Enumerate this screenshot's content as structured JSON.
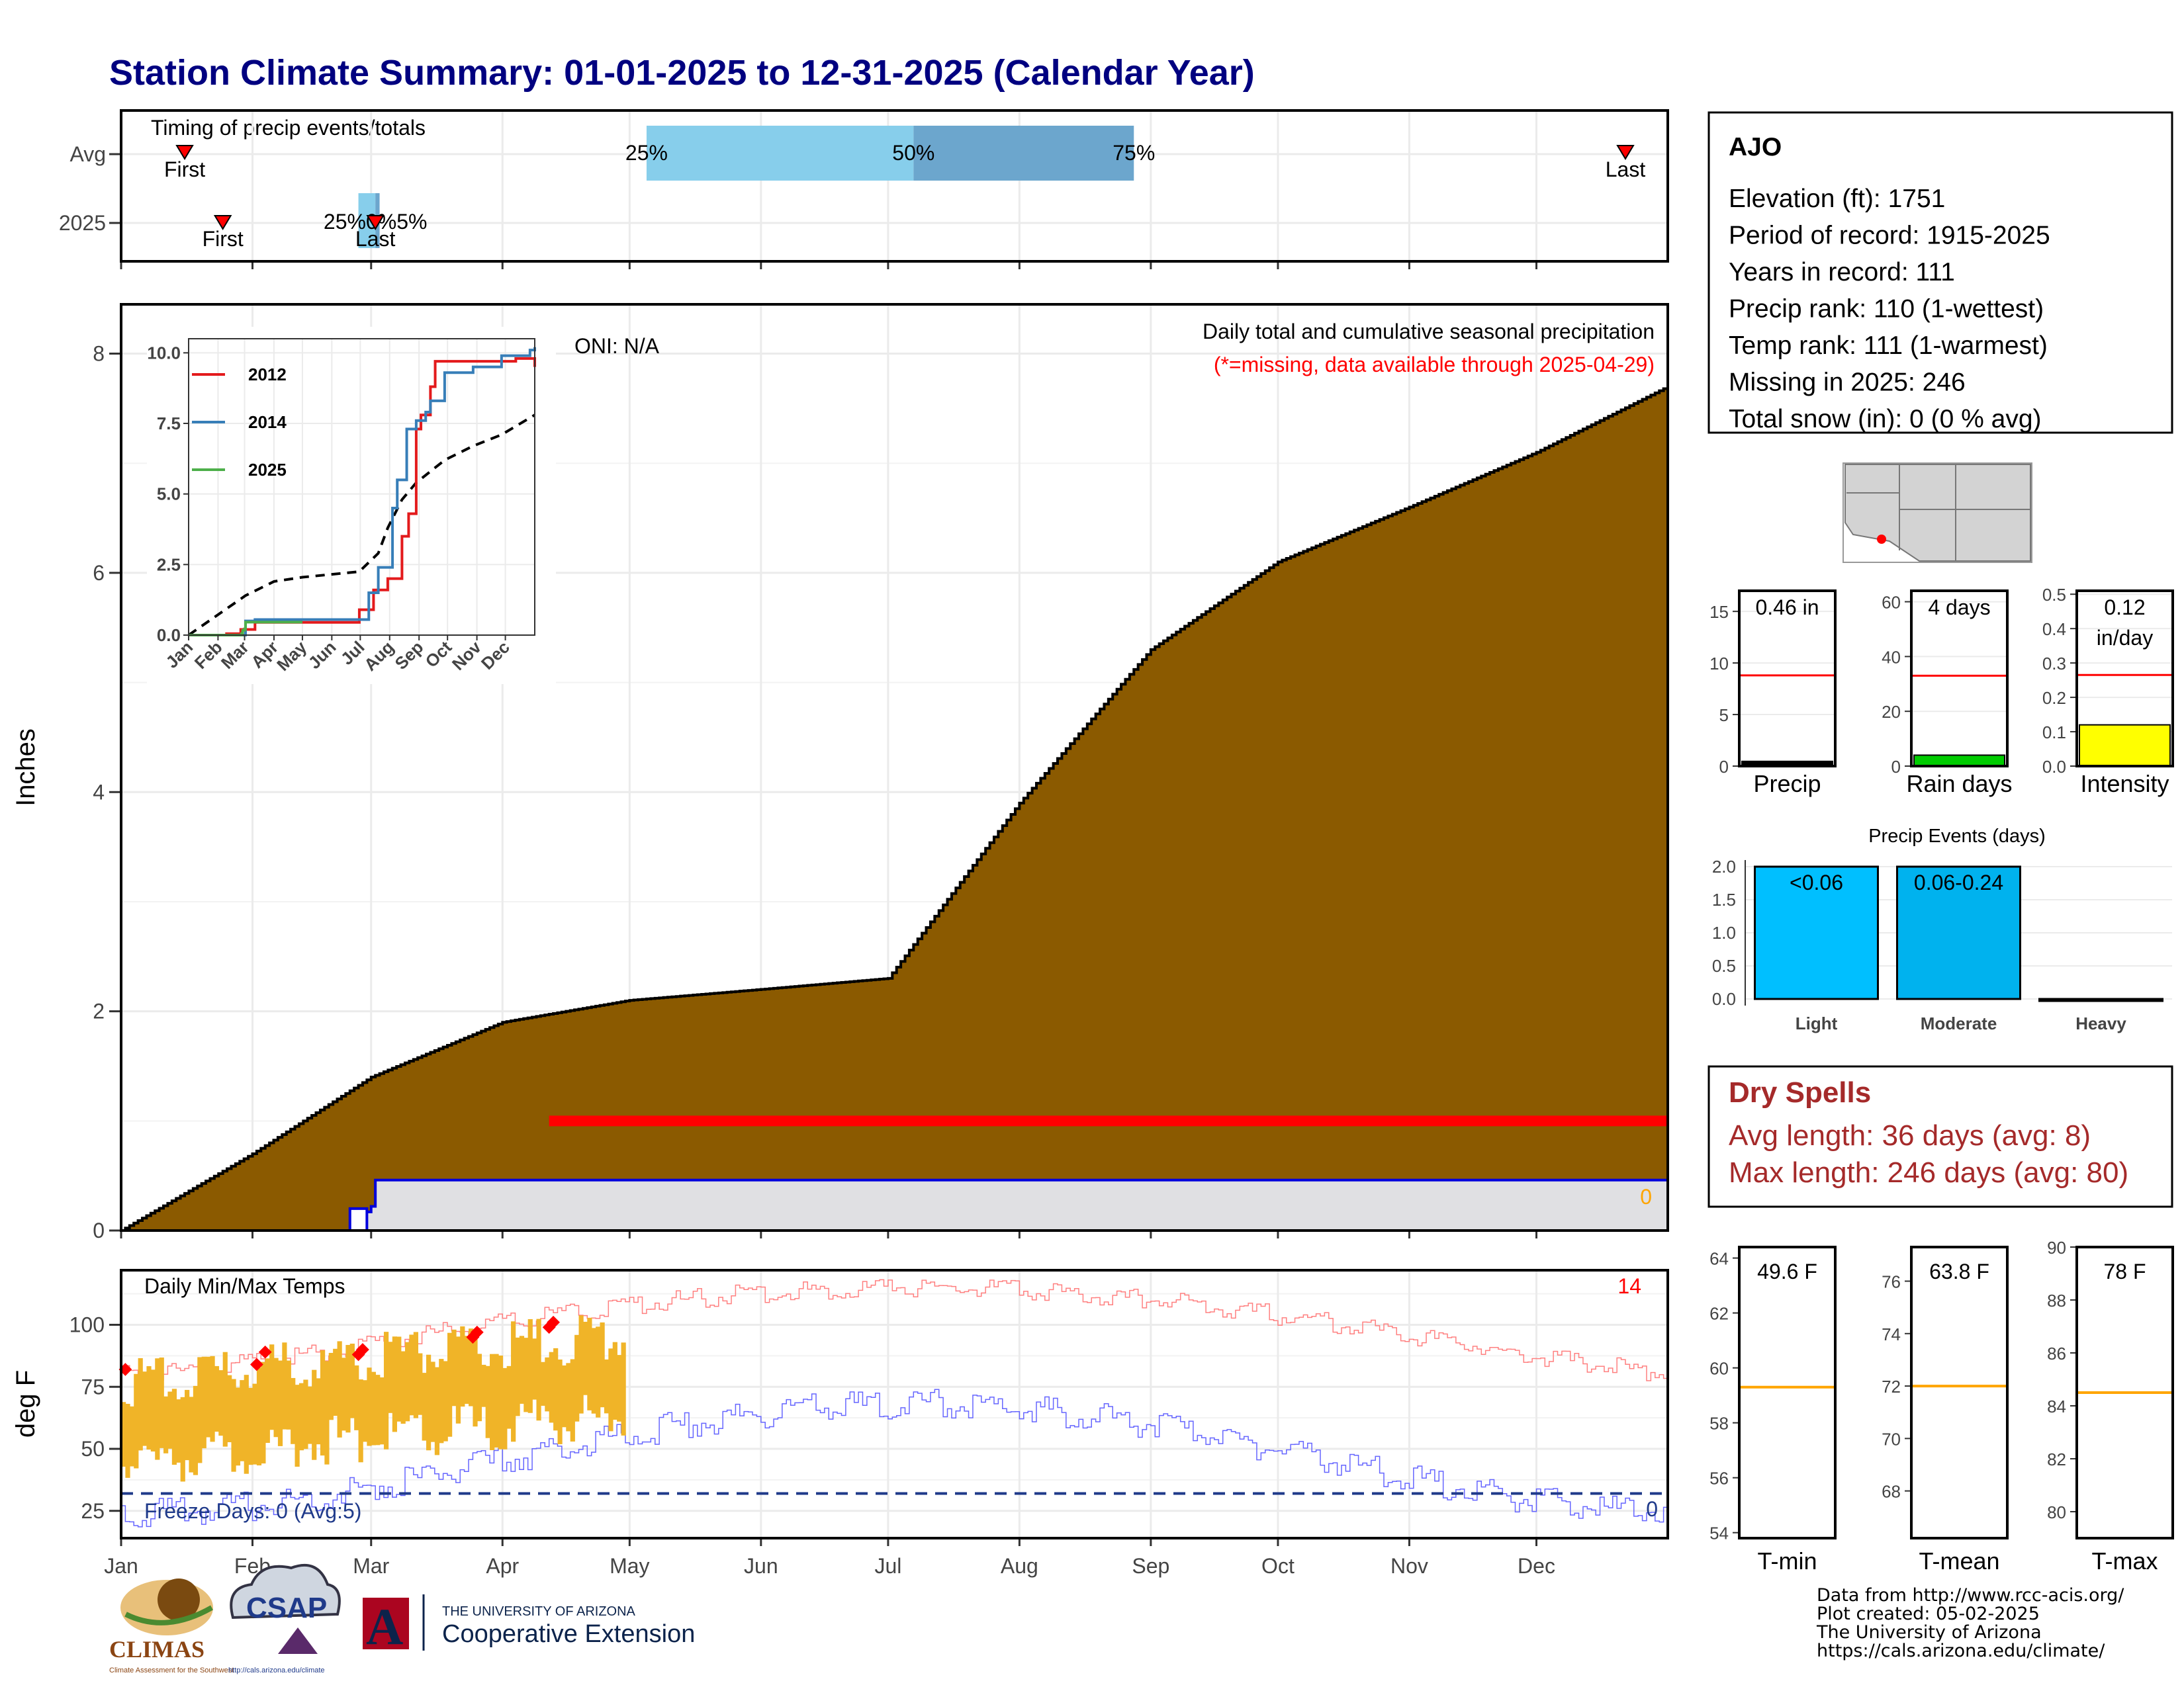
{
  "title": "Station Climate Summary: 01-01-2025 to 12-31-2025 (Calendar Year)",
  "months": [
    "Jan",
    "Feb",
    "Mar",
    "Apr",
    "May",
    "Jun",
    "Jul",
    "Aug",
    "Sep",
    "Oct",
    "Nov",
    "Dec"
  ],
  "timing": {
    "title": "Timing of precip events/totals",
    "rows": [
      "Avg",
      "2025"
    ],
    "avg": {
      "first_day": 15,
      "last_day": 355,
      "p25_day": 124,
      "p50_day": 187,
      "p75_day": 239,
      "first_label": "First",
      "last_label": "Last",
      "p25": "25%",
      "p50": "50%",
      "p75": "75%"
    },
    "y2025": {
      "first_day": 24,
      "last_day": 60,
      "bar_start_day": 56,
      "bar_split_day": 60,
      "bar_end_day": 61,
      "first_label": "First",
      "last_label": "Last",
      "pct_text": "25%0%5%"
    }
  },
  "precip": {
    "ylabel": "Inches",
    "yticks": [
      "0",
      "2",
      "4",
      "6",
      "8"
    ],
    "ymax": 8.45,
    "oni": "ONI: N/A",
    "note1": "Daily total and cumulative seasonal precipitation",
    "note2": "(*=missing, data available through 2025-04-29)",
    "zero_label": "0",
    "missing_start_day": 101,
    "missing_end_day": 365,
    "missing_level": 1.0,
    "avg_cumulative": {
      "days": [
        0,
        31,
        59,
        90,
        120,
        151,
        181,
        212,
        243,
        273,
        304,
        334,
        365
      ],
      "values": [
        0,
        0.7,
        1.4,
        1.9,
        2.1,
        2.2,
        2.3,
        3.9,
        5.3,
        6.1,
        6.6,
        7.1,
        7.7
      ]
    },
    "obs_2025": {
      "days": [
        0,
        54,
        56,
        57,
        59,
        60,
        61,
        365
      ],
      "values": [
        0,
        0,
        0.06,
        0.17,
        0.22,
        0.46,
        0.46,
        0.46
      ]
    }
  },
  "inset": {
    "yticks": [
      "0.0",
      "2.5",
      "5.0",
      "7.5",
      "10.0"
    ],
    "series": [
      {
        "name": "2012",
        "color": "#e31a1c",
        "days": [
          0,
          40,
          55,
          70,
          175,
          180,
          195,
          210,
          225,
          232,
          240,
          245,
          255,
          260,
          310,
          345,
          365
        ],
        "values": [
          0,
          0.05,
          0.2,
          0.45,
          0.45,
          0.9,
          1.6,
          2.0,
          3.5,
          4.3,
          7.3,
          7.8,
          8.8,
          9.7,
          9.7,
          9.8,
          9.5
        ]
      },
      {
        "name": "2014",
        "color": "#377eb8",
        "days": [
          0,
          60,
          70,
          180,
          190,
          200,
          215,
          220,
          230,
          240,
          250,
          255,
          270,
          300,
          330,
          360,
          365
        ],
        "values": [
          0,
          0.5,
          0.55,
          0.55,
          1.5,
          2.4,
          4.5,
          5.5,
          7.3,
          7.6,
          7.9,
          8.3,
          9.3,
          9.5,
          9.9,
          10.1,
          10.2
        ]
      },
      {
        "name": "2025",
        "color": "#4daf4a",
        "days": [
          0,
          54,
          56,
          57,
          59,
          60,
          61,
          120
        ],
        "values": [
          0,
          0,
          0.06,
          0.17,
          0.22,
          0.46,
          0.46,
          0.46
        ]
      }
    ],
    "avg": {
      "days": [
        0,
        30,
        60,
        90,
        120,
        150,
        180,
        200,
        210,
        225,
        240,
        270,
        300,
        330,
        365
      ],
      "values": [
        0,
        0.7,
        1.4,
        1.9,
        2.05,
        2.15,
        2.25,
        2.9,
        3.8,
        4.8,
        5.4,
        6.2,
        6.7,
        7.1,
        7.8
      ]
    }
  },
  "temps": {
    "ylabel": "deg F",
    "title": "Daily Min/Max Temps",
    "yticks": [
      "25",
      "50",
      "75",
      "100"
    ],
    "count": "14",
    "freeze": "Freeze Days: 0 (Avg:5)",
    "freeze_zero": "0",
    "freeze_line": 32,
    "obs_end_day": 119
  },
  "station": {
    "name": "AJO",
    "lines": [
      "Elevation (ft): 1751",
      "Period of record: 1915-2025",
      "Years in record: 111",
      "Precip rank: 110 (1-wettest)",
      "Temp rank: 111 (1-warmest)",
      "Missing in 2025: 246",
      "Total snow (in): 0 (0 % avg)"
    ]
  },
  "small_bars": [
    {
      "label": "Precip",
      "value_text": "0.46 in",
      "value": 0.46,
      "avg": 8.8,
      "max": 17,
      "ticks": [
        "0",
        "5",
        "10",
        "15"
      ],
      "tickvals": [
        0,
        5,
        10,
        15
      ],
      "fill": "#000000"
    },
    {
      "label": "Rain days",
      "value_text": "4 days",
      "value": 4,
      "avg": 33,
      "max": 64,
      "ticks": [
        "0",
        "20",
        "40",
        "60"
      ],
      "tickvals": [
        0,
        20,
        40,
        60
      ],
      "fill": "#00cc00"
    },
    {
      "label": "Intensity",
      "value_text": "0.12",
      "value_text2": "in/day",
      "value": 0.12,
      "avg": 0.265,
      "max": 0.51,
      "ticks": [
        "0.0",
        "0.1",
        "0.2",
        "0.3",
        "0.4",
        "0.5"
      ],
      "tickvals": [
        0,
        0.1,
        0.2,
        0.3,
        0.4,
        0.5
      ],
      "fill": "#ffff00"
    }
  ],
  "events": {
    "title": "Precip Events (days)",
    "ticks": [
      "0.0",
      "0.5",
      "1.0",
      "1.5",
      "2.0"
    ],
    "categories": [
      "Light",
      "Moderate",
      "Heavy"
    ],
    "bar_labels": [
      "<0.06",
      "0.06-0.24",
      ""
    ],
    "values": [
      2,
      2,
      0
    ],
    "colors": [
      "#00bfff",
      "#00b2ee",
      "#000000"
    ]
  },
  "dry_spells": {
    "title": "Dry Spells",
    "line1": "Avg length: 36 days (avg: 8)",
    "line2": "Max length: 246 days (avg: 80)"
  },
  "temp_bars": [
    {
      "label": "T-min",
      "value_text": "49.6 F",
      "avg": 59.3,
      "min": 53.8,
      "max": 64.4,
      "ticks": [
        "54",
        "56",
        "58",
        "60",
        "62",
        "64"
      ],
      "tickvals": [
        54,
        56,
        58,
        60,
        62,
        64
      ]
    },
    {
      "label": "T-mean",
      "value_text": "63.8 F",
      "avg": 72.0,
      "min": 66.2,
      "max": 77.3,
      "ticks": [
        "68",
        "70",
        "72",
        "74",
        "76"
      ],
      "tickvals": [
        68,
        70,
        72,
        74,
        76
      ]
    },
    {
      "label": "T-max",
      "value_text": "78 F",
      "avg": 84.5,
      "min": 79.0,
      "max": 90.0,
      "ticks": [
        "80",
        "82",
        "84",
        "86",
        "88",
        "90"
      ],
      "tickvals": [
        80,
        82,
        84,
        86,
        88,
        90
      ]
    }
  ],
  "credits": [
    "Data from http://www.rcc-acis.org/",
    "Plot created: 05-02-2025",
    "The University of Arizona",
    "https://cals.arizona.edu/climate/"
  ],
  "logos": {
    "climas": "CLIMAS",
    "climas_sub": "Climate Assessment for the Southwest",
    "csap": "CSAP",
    "csap_url": "http://cals.arizona.edu/climate",
    "ua_letter": "A",
    "ua_top": "THE UNIVERSITY OF ARIZONA",
    "ua_bottom": "Cooperative Extension"
  },
  "colors": {
    "cumulative": "#8b5a00",
    "missing": "#ff0000",
    "temp_obs": "#f0b428",
    "temp_hi": "#ff8080",
    "temp_lo": "#6666ff",
    "freeze": "#1f3a8a"
  }
}
